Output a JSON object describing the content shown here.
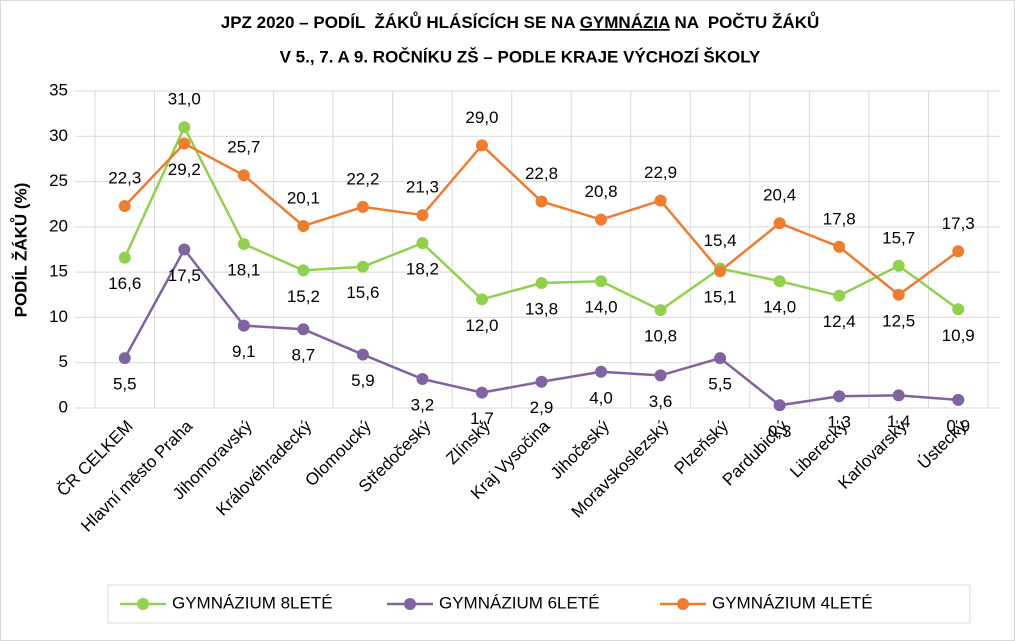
{
  "chart_data": {
    "type": "line",
    "title": {
      "line1": [
        "JPZ 2020 – PODÍL  ŽÁKŮ HLÁSÍCÍCH SE NA ",
        "GYMNÁZIA",
        " NA  POČTU ŽÁKŮ"
      ],
      "line2": "V 5., 7. A 9. ROČNÍKU ZŠ – PODLE KRAJE VÝCHOZÍ ŠKOLY"
    },
    "y_label": "PODÍL ŽÁKŮ (%)",
    "categories": [
      "ČR CELKEM",
      "Hlavní město Praha",
      "Jihomoravský",
      "Královéhradecký",
      "Olomoucký",
      "Středočeský",
      "Zlínský",
      "Kraj Vysočina",
      "Jihočeský",
      "Moravskoslezský",
      "Plzeňský",
      "Pardubický",
      "Liberecký",
      "Karlovarský",
      "Ústecký"
    ],
    "series": [
      {
        "name": "GYMNÁZIUM 8LETÉ",
        "color": "#92d050",
        "values": [
          16.6,
          31.0,
          18.1,
          15.2,
          15.6,
          18.2,
          12.0,
          13.8,
          14.0,
          10.8,
          15.4,
          14.0,
          12.4,
          15.7,
          10.9
        ],
        "value_labels": [
          "16,6",
          "31,0",
          "18,1",
          "15,2",
          "15,6",
          "18,2",
          "12,0",
          "13,8",
          "14,0",
          "10,8",
          "15,4",
          "14,0",
          "12,4",
          "15,7",
          "10,9"
        ]
      },
      {
        "name": "GYMNÁZIUM 6LETÉ",
        "color": "#8064a2",
        "values": [
          5.5,
          17.5,
          9.1,
          8.7,
          5.9,
          3.2,
          1.7,
          2.9,
          4.0,
          3.6,
          5.5,
          0.3,
          1.3,
          1.4,
          0.9
        ],
        "value_labels": [
          "5,5",
          "17,5",
          "9,1",
          "8,7",
          "5,9",
          "3,2",
          "1,7",
          "2,9",
          "4,0",
          "3,6",
          "5,5",
          "0,3",
          "1,3",
          "1,4",
          "0,9"
        ]
      },
      {
        "name": "GYMNÁZIUM 4LETÉ",
        "color": "#ed7d31",
        "values": [
          22.3,
          29.2,
          25.7,
          20.1,
          22.2,
          21.3,
          29.0,
          22.8,
          20.8,
          22.9,
          15.1,
          20.4,
          17.8,
          12.5,
          17.3
        ],
        "value_labels": [
          "22,3",
          "29,2",
          "25,7",
          "20,1",
          "22,2",
          "21,3",
          "29,0",
          "22,8",
          "20,8",
          "22,9",
          "15,1",
          "20,4",
          "17,8",
          "12,5",
          "17,3"
        ]
      }
    ],
    "ylim": [
      0,
      35
    ],
    "yticks": [
      0,
      5,
      10,
      15,
      20,
      25,
      30,
      35
    ],
    "grid": true,
    "legend": "bottom"
  }
}
